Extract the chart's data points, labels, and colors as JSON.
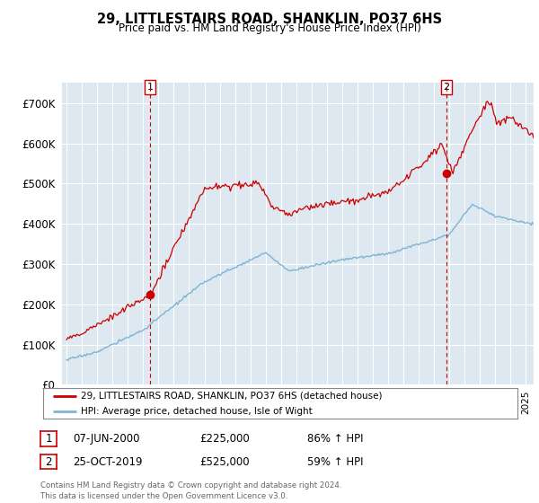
{
  "title": "29, LITTLESTAIRS ROAD, SHANKLIN, PO37 6HS",
  "subtitle": "Price paid vs. HM Land Registry's House Price Index (HPI)",
  "ylim": [
    0,
    750000
  ],
  "yticks": [
    0,
    100000,
    200000,
    300000,
    400000,
    500000,
    600000,
    700000
  ],
  "ytick_labels": [
    "£0",
    "£100K",
    "£200K",
    "£300K",
    "£400K",
    "£500K",
    "£600K",
    "£700K"
  ],
  "plot_bg_color": "#dde8f0",
  "fig_bg_color": "#ffffff",
  "grid_color": "#ffffff",
  "sale1": {
    "date_num": 2000.44,
    "price": 225000,
    "label": "1",
    "date_str": "07-JUN-2000",
    "pct": "86% ↑ HPI"
  },
  "sale2": {
    "date_num": 2019.81,
    "price": 525000,
    "label": "2",
    "date_str": "25-OCT-2019",
    "pct": "59% ↑ HPI"
  },
  "legend_line1": "29, LITTLESTAIRS ROAD, SHANKLIN, PO37 6HS (detached house)",
  "legend_line2": "HPI: Average price, detached house, Isle of Wight",
  "footer": "Contains HM Land Registry data © Crown copyright and database right 2024.\nThis data is licensed under the Open Government Licence v3.0.",
  "line_color_red": "#cc0000",
  "line_color_blue": "#7eb4d4",
  "vline_color": "#cc0000",
  "box_color": "#cc0000",
  "xlim_left": 1994.7,
  "xlim_right": 2025.5
}
